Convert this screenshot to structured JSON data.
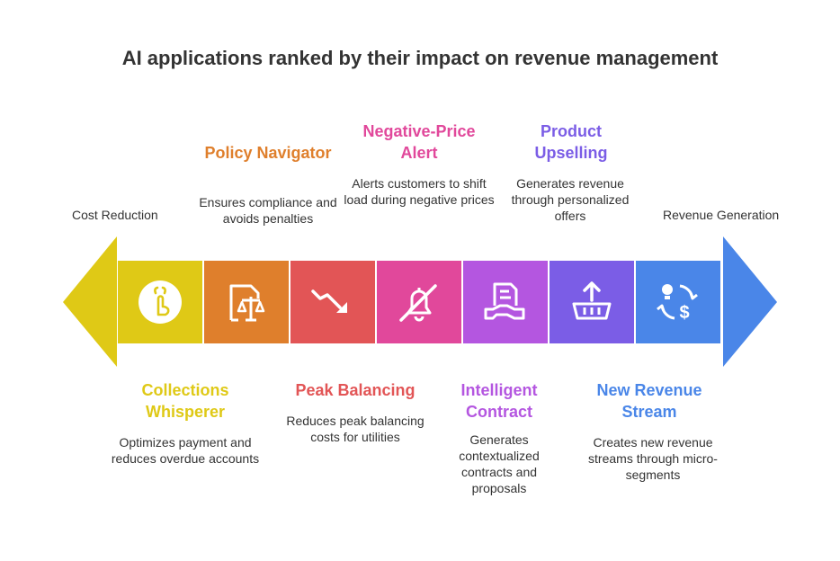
{
  "title": "AI applications ranked by their impact on revenue management",
  "left_label": "Cost Reduction",
  "right_label": "Revenue Generation",
  "colors": {
    "left_arrow": "#dfc916",
    "right_arrow": "#4a86e8"
  },
  "stages": [
    {
      "title": "Collections Whisperer",
      "desc": "Optimizes payment and reduces overdue accounts",
      "color": "#dfc916",
      "icon": "hand-finger-icon"
    },
    {
      "title": "Policy Navigator",
      "desc": "Ensures compliance and avoids penalties",
      "color": "#df7f2c",
      "icon": "document-scales-icon"
    },
    {
      "title": "Peak Balancing",
      "desc": "Reduces peak balancing costs for utilities",
      "color": "#e25556",
      "icon": "trend-down-icon"
    },
    {
      "title": "Negative-Price Alert",
      "desc": "Alerts customers to shift load during negative prices",
      "color": "#e1489b",
      "icon": "bell-off-icon"
    },
    {
      "title": "Intelligent Contract",
      "desc": "Generates contextualized contracts and proposals",
      "color": "#b456e0",
      "icon": "contract-handshake-icon"
    },
    {
      "title": "Product Upselling",
      "desc": "Generates revenue through personalized offers",
      "color": "#7b5de6",
      "icon": "basket-upload-icon"
    },
    {
      "title": "New Revenue Stream",
      "desc": "Creates new revenue streams through micro-segments",
      "color": "#4a86e8",
      "icon": "idea-dollar-icon"
    }
  ]
}
